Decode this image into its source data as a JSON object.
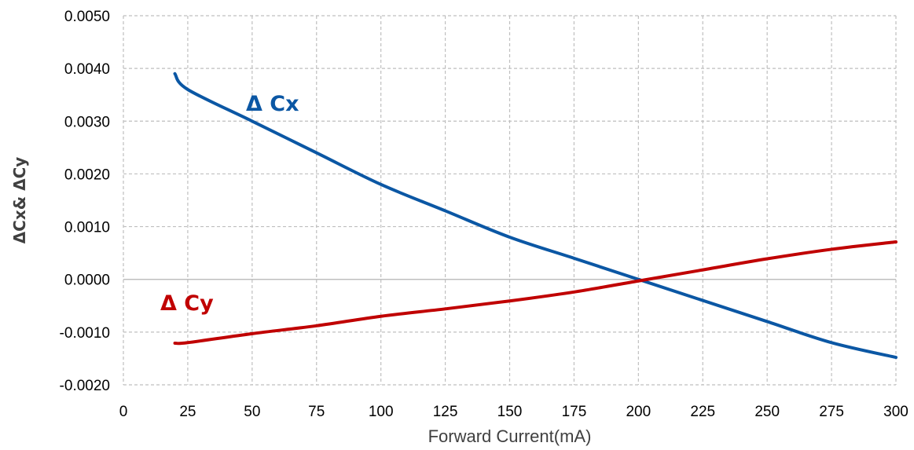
{
  "chart_data": {
    "type": "line",
    "title": "",
    "xlabel": "Forward Current(mA)",
    "ylabel": "ΔCx& ΔCy",
    "xlim": [
      0,
      300
    ],
    "ylim": [
      -0.002,
      0.005
    ],
    "x_ticks": [
      0,
      25,
      50,
      75,
      100,
      125,
      150,
      175,
      200,
      225,
      250,
      275,
      300
    ],
    "x_tick_labels": [
      "0",
      "25",
      "50",
      "75",
      "100",
      "125",
      "150",
      "175",
      "200",
      "225",
      "250",
      "275",
      "300"
    ],
    "y_ticks": [
      -0.002,
      -0.001,
      0.0,
      0.001,
      0.002,
      0.003,
      0.004,
      0.005
    ],
    "y_tick_labels": [
      "-0.0020",
      "-0.0010",
      "0.0000",
      "0.0010",
      "0.0020",
      "0.0030",
      "0.0040",
      "0.0050"
    ],
    "grid": true,
    "legend": "none",
    "series": [
      {
        "name": "Δ Cx",
        "color": "#0b57a4",
        "x": [
          20,
          25,
          50,
          75,
          100,
          125,
          150,
          175,
          200,
          225,
          250,
          275,
          300
        ],
        "y": [
          0.0039,
          0.0036,
          0.003,
          0.0024,
          0.0018,
          0.0013,
          0.0008,
          0.0004,
          0.0,
          -0.0004,
          -0.0008,
          -0.0012,
          -0.00148
        ]
      },
      {
        "name": "Δ Cy",
        "color": "#c00000",
        "x": [
          20,
          25,
          50,
          75,
          100,
          125,
          150,
          175,
          200,
          225,
          250,
          275,
          300
        ],
        "y": [
          -0.00121,
          -0.0012,
          -0.00103,
          -0.00088,
          -0.0007,
          -0.00056,
          -0.00041,
          -0.00024,
          -3e-05,
          0.00018,
          0.00039,
          0.00057,
          0.00071
        ]
      }
    ]
  }
}
